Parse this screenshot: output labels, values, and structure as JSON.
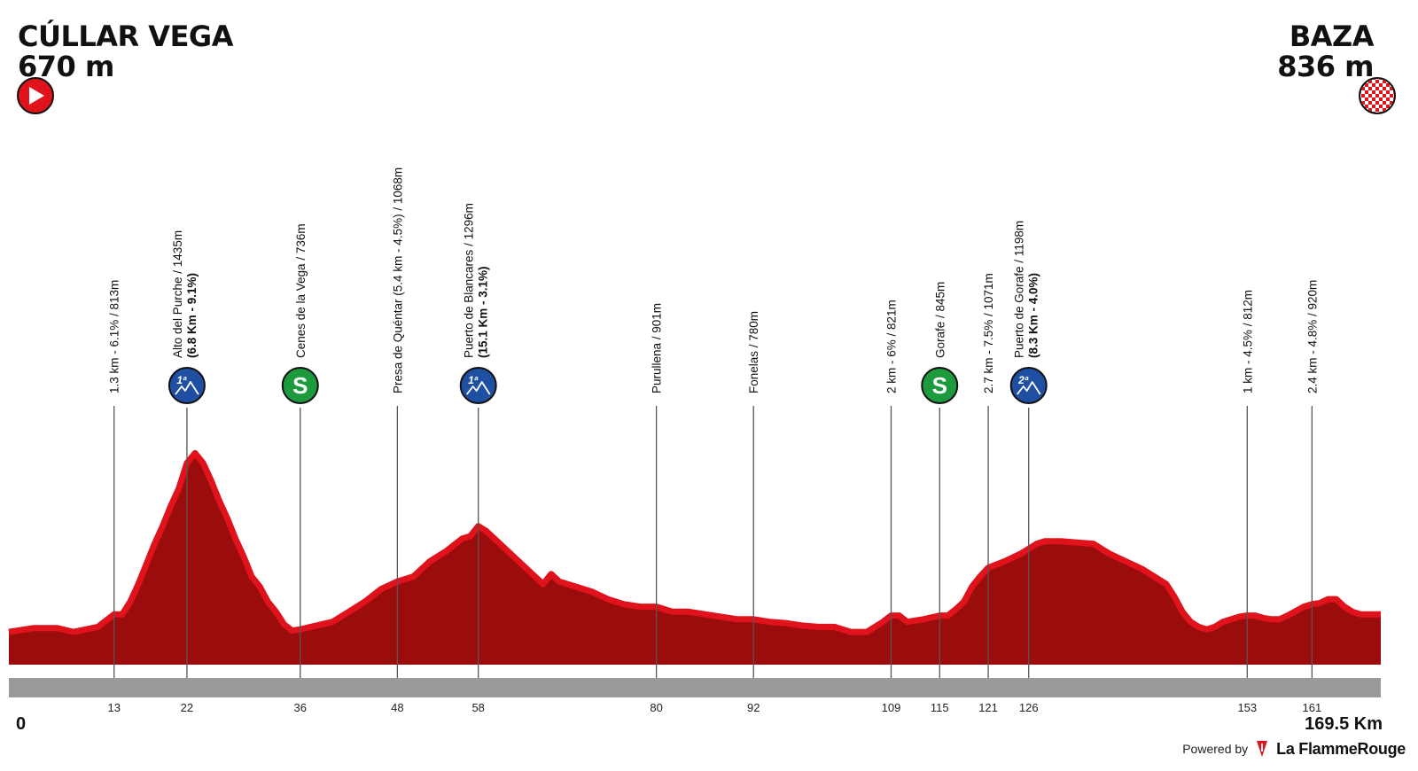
{
  "header": {
    "start_name": "CÚLLAR VEGA",
    "start_alt": "670 m",
    "finish_name": "BAZA",
    "finish_alt": "836 m"
  },
  "footer": {
    "zero_label": "0",
    "total_label": "169.5 Km",
    "powered_by": "Powered by",
    "brand": "La FlammeRouge"
  },
  "colors": {
    "profile_fill": "#9b0d0d",
    "profile_edge": "#e0121b",
    "km_bar": "#9a9a9a",
    "climb_badge": "#1f4fa3",
    "sprint_badge": "#1e9a3e",
    "start_icon": "#e0121b"
  },
  "chart_data": {
    "type": "area",
    "title": "",
    "xlabel": "",
    "ylabel": "",
    "xlim": [
      0,
      169.5
    ],
    "ylim": [
      550,
      1500
    ],
    "profile": [
      [
        0,
        680
      ],
      [
        3,
        695
      ],
      [
        6,
        695
      ],
      [
        8,
        680
      ],
      [
        11,
        700
      ],
      [
        12,
        725
      ],
      [
        13,
        750
      ],
      [
        14,
        750
      ],
      [
        15,
        800
      ],
      [
        16,
        870
      ],
      [
        17,
        950
      ],
      [
        18,
        1030
      ],
      [
        19,
        1100
      ],
      [
        20,
        1180
      ],
      [
        21,
        1250
      ],
      [
        22,
        1350
      ],
      [
        23,
        1390
      ],
      [
        24,
        1350
      ],
      [
        25,
        1280
      ],
      [
        26,
        1200
      ],
      [
        27,
        1130
      ],
      [
        28,
        1050
      ],
      [
        29,
        980
      ],
      [
        30,
        900
      ],
      [
        31,
        860
      ],
      [
        32,
        800
      ],
      [
        33,
        760
      ],
      [
        34,
        710
      ],
      [
        35,
        685
      ],
      [
        36,
        690
      ],
      [
        38,
        705
      ],
      [
        40,
        720
      ],
      [
        42,
        760
      ],
      [
        44,
        800
      ],
      [
        46,
        850
      ],
      [
        48,
        880
      ],
      [
        50,
        900
      ],
      [
        52,
        960
      ],
      [
        54,
        1000
      ],
      [
        56,
        1050
      ],
      [
        57,
        1060
      ],
      [
        58,
        1100
      ],
      [
        59,
        1080
      ],
      [
        60,
        1050
      ],
      [
        62,
        990
      ],
      [
        64,
        930
      ],
      [
        66,
        870
      ],
      [
        67,
        910
      ],
      [
        68,
        880
      ],
      [
        69,
        870
      ],
      [
        70,
        860
      ],
      [
        72,
        840
      ],
      [
        74,
        810
      ],
      [
        76,
        790
      ],
      [
        78,
        780
      ],
      [
        80,
        780
      ],
      [
        82,
        760
      ],
      [
        84,
        760
      ],
      [
        86,
        750
      ],
      [
        88,
        740
      ],
      [
        90,
        730
      ],
      [
        92,
        730
      ],
      [
        94,
        720
      ],
      [
        96,
        715
      ],
      [
        98,
        705
      ],
      [
        100,
        700
      ],
      [
        102,
        700
      ],
      [
        104,
        680
      ],
      [
        106,
        680
      ],
      [
        108,
        720
      ],
      [
        109,
        745
      ],
      [
        110,
        745
      ],
      [
        111,
        720
      ],
      [
        113,
        730
      ],
      [
        115,
        745
      ],
      [
        116,
        745
      ],
      [
        117,
        770
      ],
      [
        118,
        800
      ],
      [
        119,
        860
      ],
      [
        120,
        900
      ],
      [
        121,
        935
      ],
      [
        123,
        960
      ],
      [
        125,
        990
      ],
      [
        126,
        1010
      ],
      [
        127,
        1030
      ],
      [
        128,
        1040
      ],
      [
        130,
        1040
      ],
      [
        132,
        1035
      ],
      [
        134,
        1030
      ],
      [
        135,
        1010
      ],
      [
        136,
        990
      ],
      [
        138,
        960
      ],
      [
        140,
        930
      ],
      [
        142,
        890
      ],
      [
        143,
        870
      ],
      [
        144,
        820
      ],
      [
        145,
        760
      ],
      [
        146,
        720
      ],
      [
        147,
        700
      ],
      [
        148,
        690
      ],
      [
        149,
        700
      ],
      [
        150,
        720
      ],
      [
        152,
        740
      ],
      [
        153,
        745
      ],
      [
        154,
        745
      ],
      [
        155,
        735
      ],
      [
        156,
        730
      ],
      [
        157,
        730
      ],
      [
        158,
        745
      ],
      [
        160,
        780
      ],
      [
        161,
        790
      ],
      [
        162,
        795
      ],
      [
        163,
        810
      ],
      [
        164,
        810
      ],
      [
        165,
        780
      ],
      [
        166,
        760
      ],
      [
        167,
        750
      ],
      [
        169.5,
        750
      ]
    ],
    "points": [
      {
        "km": 13,
        "label": "1.3 km - 6.1% / 813m",
        "sub": "",
        "icon": ""
      },
      {
        "km": 22,
        "label": "Alto del Purche / 1435m",
        "sub": "(6.8 Km - 9.1%)",
        "icon": "cat1"
      },
      {
        "km": 36,
        "label": "Cenes de la Vega / 736m",
        "sub": "",
        "icon": "sprint"
      },
      {
        "km": 48,
        "label": "Presa de Quéntar (5.4 km - 4.5%) / 1068m",
        "sub": "",
        "icon": ""
      },
      {
        "km": 58,
        "label": "Puerto de Blancares / 1296m",
        "sub": "(15.1 Km - 3.1%)",
        "icon": "cat1"
      },
      {
        "km": 80,
        "label": "Purullena / 901m",
        "sub": "",
        "icon": ""
      },
      {
        "km": 92,
        "label": "Fonelas / 780m",
        "sub": "",
        "icon": ""
      },
      {
        "km": 109,
        "label": "2 km - 6% / 821m",
        "sub": "",
        "icon": ""
      },
      {
        "km": 115,
        "label": "Gorafe / 845m",
        "sub": "",
        "icon": "sprint"
      },
      {
        "km": 121,
        "label": "2.7 km - 7.5% / 1071m",
        "sub": "",
        "icon": ""
      },
      {
        "km": 126,
        "label": "Puerto de Gorafe / 1198m",
        "sub": "(8.3 Km - 4.0%)",
        "icon": "cat2"
      },
      {
        "km": 153,
        "label": "1 km - 4.5% / 812m",
        "sub": "",
        "icon": ""
      },
      {
        "km": 161,
        "label": "2.4 km - 4.8% / 920m",
        "sub": "",
        "icon": ""
      }
    ],
    "km_ticks": [
      "13",
      "22",
      "36",
      "48",
      "58",
      "80",
      "92",
      "109",
      "115",
      "121",
      "126",
      "153",
      "161"
    ],
    "badge_text": {
      "cat1": "1ª",
      "cat2": "2ª",
      "sprint": "S"
    }
  }
}
